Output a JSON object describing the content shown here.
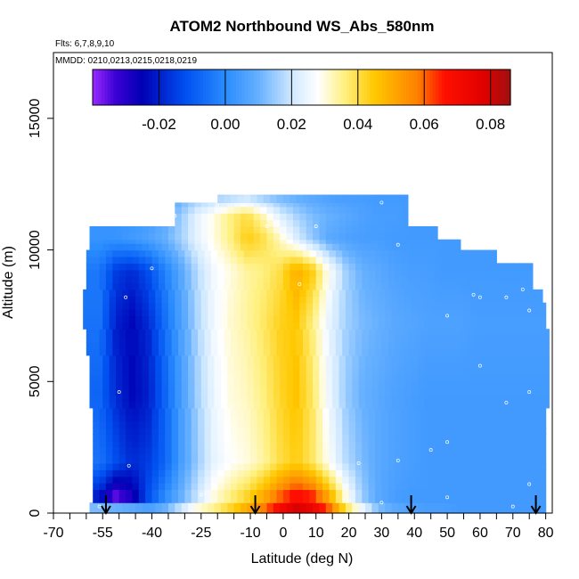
{
  "chart_data": {
    "type": "heatmap",
    "title": "ATOM2 Northbound WS_Abs_580nm",
    "subtitle_flights": "Flts: 6,7,8,9,10",
    "subtitle_dates": "MMDD: 0210,0213,0215,0218,0219",
    "xlabel": "Latitude (deg N)",
    "ylabel": "Altitude (m)",
    "xlim": [
      -70,
      82
    ],
    "ylim": [
      0,
      17500
    ],
    "x_ticks": [
      -70,
      -55,
      -40,
      -25,
      -10,
      0,
      10,
      20,
      30,
      40,
      50,
      60,
      70,
      80
    ],
    "x_tick_labels": [
      "-70",
      "-55",
      "-40",
      "-25",
      "-10",
      "0",
      "10",
      "20",
      "30",
      "40",
      "50",
      "60",
      "70",
      "80"
    ],
    "y_ticks": [
      0,
      5000,
      10000,
      15000
    ],
    "y_tick_labels": [
      "0",
      "5000",
      "10000",
      "15000"
    ],
    "colorbar": {
      "min": -0.04,
      "max": 0.086,
      "ticks": [
        -0.02,
        0.0,
        0.02,
        0.04,
        0.06,
        0.08
      ],
      "tick_labels": [
        "-0.02",
        "0.00",
        "0.02",
        "0.04",
        "0.06",
        "0.08"
      ],
      "stops": [
        {
          "value": -0.04,
          "color": "#9a2aff"
        },
        {
          "value": -0.033,
          "color": "#3a00d4"
        },
        {
          "value": -0.025,
          "color": "#0000b4"
        },
        {
          "value": -0.012,
          "color": "#0050f0"
        },
        {
          "value": 0.0,
          "color": "#2a8cff"
        },
        {
          "value": 0.01,
          "color": "#66b0ff"
        },
        {
          "value": 0.02,
          "color": "#cfe8ff"
        },
        {
          "value": 0.028,
          "color": "#ffffff"
        },
        {
          "value": 0.036,
          "color": "#fff080"
        },
        {
          "value": 0.045,
          "color": "#ffc800"
        },
        {
          "value": 0.058,
          "color": "#ff8000"
        },
        {
          "value": 0.066,
          "color": "#ff1000"
        },
        {
          "value": 0.078,
          "color": "#e00000"
        },
        {
          "value": 0.086,
          "color": "#a01010"
        }
      ]
    },
    "field": {
      "columns_lat": [
        -56,
        -51,
        -46,
        -41,
        -36,
        -31,
        -26,
        -21,
        -16,
        -11,
        -6,
        -1,
        4,
        9,
        14,
        19,
        24,
        29,
        34,
        39,
        44,
        49,
        54,
        59,
        64,
        69,
        74,
        79
      ],
      "bands": [
        {
          "alt_range": [
            0,
            400
          ],
          "values": [
            0.012,
            0.01,
            0.008,
            0.005,
            0.01,
            0.02,
            0.03,
            0.035,
            0.042,
            0.05,
            0.058,
            0.07,
            0.079,
            0.074,
            0.06,
            0.04,
            0.025,
            0.012,
            0.008,
            0.006,
            0.005,
            0.005,
            0.004,
            0.004,
            0.004,
            0.004,
            0.004,
            0.004
          ]
        },
        {
          "alt_range": [
            400,
            900
          ],
          "values": [
            -0.02,
            -0.035,
            -0.028,
            -0.012,
            0.0,
            0.01,
            0.02,
            0.03,
            0.036,
            0.042,
            0.05,
            0.06,
            0.068,
            0.064,
            0.05,
            0.03,
            0.015,
            0.008,
            0.005,
            0.004,
            0.004,
            0.004,
            0.004,
            0.004,
            0.004,
            0.004,
            0.004,
            0.004
          ]
        },
        {
          "alt_range": [
            900,
            3000
          ],
          "values": [
            -0.005,
            -0.012,
            -0.018,
            -0.015,
            -0.008,
            0.005,
            0.015,
            0.024,
            0.028,
            0.03,
            0.034,
            0.04,
            0.044,
            0.038,
            0.028,
            0.018,
            0.012,
            0.008,
            0.006,
            0.005,
            0.004,
            0.004,
            0.004,
            0.004,
            0.004,
            0.004,
            0.004,
            0.004
          ]
        },
        {
          "alt_range": [
            3000,
            6000
          ],
          "values": [
            -0.008,
            -0.018,
            -0.024,
            -0.02,
            -0.008,
            0.005,
            0.016,
            0.025,
            0.03,
            0.032,
            0.036,
            0.042,
            0.046,
            0.038,
            0.025,
            0.015,
            0.01,
            0.008,
            0.006,
            0.005,
            0.004,
            0.004,
            0.004,
            0.004,
            0.004,
            0.004,
            0.004,
            0.004
          ]
        },
        {
          "alt_range": [
            6000,
            8500
          ],
          "values": [
            -0.005,
            -0.02,
            -0.024,
            -0.018,
            -0.006,
            0.006,
            0.017,
            0.026,
            0.031,
            0.034,
            0.038,
            0.043,
            0.045,
            0.036,
            0.024,
            0.016,
            0.012,
            0.01,
            0.008,
            0.007,
            0.006,
            0.006,
            0.006,
            0.005,
            0.005,
            0.005,
            0.005,
            0.005
          ]
        },
        {
          "alt_range": [
            8500,
            10000
          ],
          "values": [
            -0.004,
            -0.015,
            -0.018,
            -0.012,
            -0.002,
            0.008,
            0.018,
            0.026,
            0.03,
            0.034,
            0.036,
            0.04,
            0.05,
            0.044,
            0.028,
            0.016,
            0.01,
            0.008,
            0.006,
            0.005,
            0.005,
            0.004,
            0.004,
            0.004,
            0.004,
            0.004,
            0.004,
            0.004
          ]
        },
        {
          "alt_range": [
            10000,
            10900
          ],
          "values": [
            0.002,
            0.002,
            0.004,
            0.006,
            0.01,
            0.016,
            0.024,
            0.03,
            0.036,
            0.044,
            0.04,
            0.032,
            0.022,
            0.014,
            0.008,
            0.006,
            0.005,
            0.005,
            0.004,
            0.004,
            0.004,
            0.004,
            0.004,
            0.004,
            0.004,
            0.004,
            0.004,
            0.004
          ]
        },
        {
          "alt_range": [
            10900,
            11800
          ],
          "values": [
            0.002,
            0.002,
            0.002,
            0.004,
            0.008,
            0.015,
            0.024,
            0.03,
            0.036,
            0.04,
            0.032,
            0.022,
            0.016,
            0.012,
            0.01,
            0.008,
            0.006,
            0.005,
            0.005,
            0.004,
            0.004,
            0.004,
            0.004,
            0.004,
            0.004,
            0.004,
            0.004,
            0.004
          ]
        },
        {
          "alt_range": [
            11800,
            12100
          ],
          "values": [
            0.002,
            0.002,
            0.002,
            0.002,
            0.004,
            0.01,
            0.014,
            0.016,
            0.018,
            0.02,
            0.016,
            0.012,
            0.01,
            0.008,
            0.006,
            0.005,
            0.005,
            0.004,
            0.004,
            0.004,
            0.004,
            0.004,
            0.004,
            0.004,
            0.004,
            0.004,
            0.004,
            0.004
          ]
        }
      ],
      "row_extents": [
        {
          "alt_range": [
            0,
            400
          ],
          "lat_range": [
            -59,
            80
          ]
        },
        {
          "alt_range": [
            400,
            900
          ],
          "lat_range": [
            -58,
            80
          ]
        },
        {
          "alt_range": [
            900,
            2000
          ],
          "lat_range": [
            -58,
            80
          ]
        },
        {
          "alt_range": [
            2000,
            4000
          ],
          "lat_range": [
            -58,
            80
          ]
        },
        {
          "alt_range": [
            4000,
            6000
          ],
          "lat_range": [
            -59,
            81
          ]
        },
        {
          "alt_range": [
            6000,
            7000
          ],
          "lat_range": [
            -60,
            81
          ]
        },
        {
          "alt_range": [
            7000,
            8000
          ],
          "lat_range": [
            -61,
            80
          ]
        },
        {
          "alt_range": [
            8000,
            8500
          ],
          "lat_range": [
            -61,
            79
          ]
        },
        {
          "alt_range": [
            8500,
            9500
          ],
          "lat_range": [
            -60,
            76
          ]
        },
        {
          "alt_range": [
            9500,
            10000
          ],
          "lat_range": [
            -60,
            65
          ]
        },
        {
          "alt_range": [
            10000,
            10400
          ],
          "lat_range": [
            -59,
            54
          ]
        },
        {
          "alt_range": [
            10400,
            10900
          ],
          "lat_range": [
            -59,
            47
          ]
        },
        {
          "alt_range": [
            10900,
            11400
          ],
          "lat_range": [
            -33,
            38
          ]
        },
        {
          "alt_range": [
            11400,
            11800
          ],
          "lat_range": [
            -33,
            38
          ]
        },
        {
          "alt_range": [
            11800,
            12100
          ],
          "lat_range": [
            -20,
            38
          ]
        }
      ]
    },
    "arrows_lat": [
      -54,
      -8.5,
      39,
      77
    ]
  }
}
